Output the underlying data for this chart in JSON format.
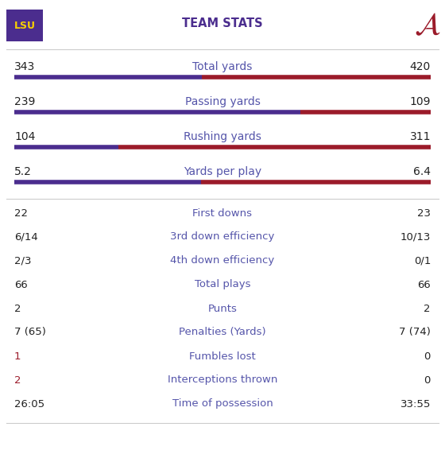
{
  "title": "TEAM STATS",
  "lsu_color": "#4B2D8E",
  "alabama_color": "#9B1B2A",
  "lsu_text_color": "#F8D000",
  "title_color": "#4B2D8E",
  "bar_stats": [
    {
      "label": "Total yards",
      "lsu": 343,
      "bama": 420,
      "lsu_disp": "343",
      "bama_disp": "420"
    },
    {
      "label": "Passing yards",
      "lsu": 239,
      "bama": 109,
      "lsu_disp": "239",
      "bama_disp": "109"
    },
    {
      "label": "Rushing yards",
      "lsu": 104,
      "bama": 311,
      "lsu_disp": "104",
      "bama_disp": "311"
    },
    {
      "label": "Yards per play",
      "lsu": 5.2,
      "bama": 6.4,
      "lsu_disp": "5.2",
      "bama_disp": "6.4"
    }
  ],
  "text_stats": [
    {
      "label": "First downs",
      "lsu": "22",
      "bama": "23",
      "lsu_highlight": false,
      "bama_highlight": false
    },
    {
      "label": "3rd down efficiency",
      "lsu": "6/14",
      "bama": "10/13",
      "lsu_highlight": false,
      "bama_highlight": false
    },
    {
      "label": "4th down efficiency",
      "lsu": "2/3",
      "bama": "0/1",
      "lsu_highlight": false,
      "bama_highlight": false
    },
    {
      "label": "Total plays",
      "lsu": "66",
      "bama": "66",
      "lsu_highlight": false,
      "bama_highlight": false
    },
    {
      "label": "Punts",
      "lsu": "2",
      "bama": "2",
      "lsu_highlight": false,
      "bama_highlight": false
    },
    {
      "label": "Penalties (Yards)",
      "lsu": "7 (65)",
      "bama": "7 (74)",
      "lsu_highlight": false,
      "bama_highlight": false
    },
    {
      "label": "Fumbles lost",
      "lsu": "1",
      "bama": "0",
      "lsu_highlight": true,
      "bama_highlight": false
    },
    {
      "label": "Interceptions thrown",
      "lsu": "2",
      "bama": "0",
      "lsu_highlight": true,
      "bama_highlight": false
    },
    {
      "label": "Time of possession",
      "lsu": "26:05",
      "bama": "33:55",
      "lsu_highlight": false,
      "bama_highlight": false
    }
  ],
  "bg_color": "#FFFFFF",
  "divider_color": "#CCCCCC",
  "label_color": "#5555AA",
  "value_color": "#222222",
  "highlight_color": "#9B1B2A"
}
